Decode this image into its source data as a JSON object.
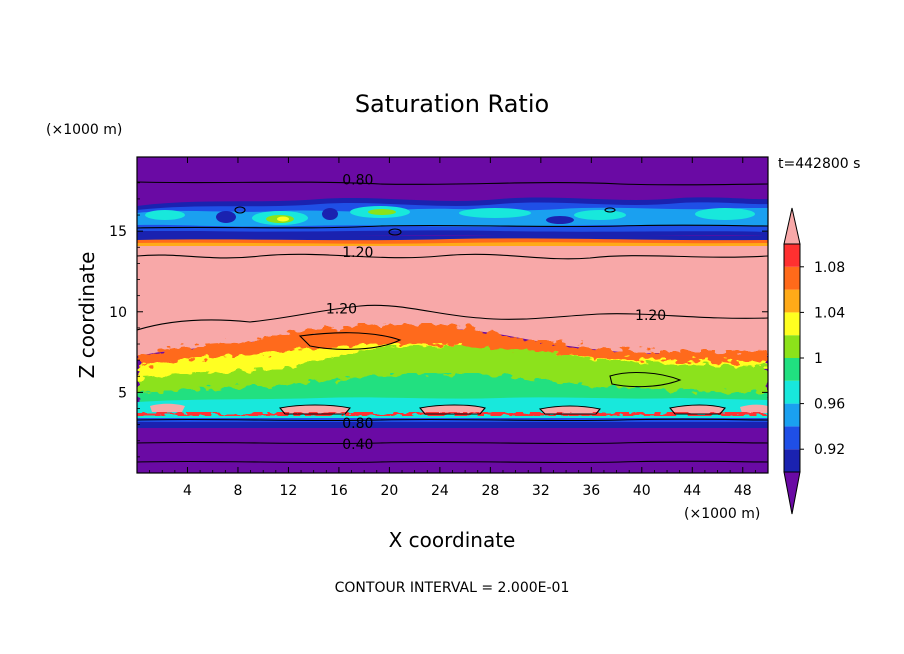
{
  "chart_data": {
    "type": "contour",
    "title": "Saturation Ratio",
    "xlabel": "X coordinate",
    "ylabel": "Z coordinate",
    "x_unit": "(×1000 m)",
    "y_unit": "(×1000 m)",
    "time_label": "t=442800 s",
    "contour_interval_text": "CONTOUR INTERVAL = 2.000E-01",
    "x_ticks": [
      4,
      8,
      12,
      16,
      20,
      24,
      28,
      32,
      36,
      40,
      44,
      48
    ],
    "y_ticks": [
      5,
      10,
      15
    ],
    "xlim": [
      0,
      50
    ],
    "ylim": [
      0,
      19.6
    ],
    "colorbar": {
      "levels": [
        0.9,
        0.92,
        0.94,
        0.96,
        0.98,
        1.0,
        1.02,
        1.04,
        1.06,
        1.08,
        1.1
      ],
      "tick_labels": [
        "0.92",
        "0.96",
        "1",
        "1.04",
        "1.08"
      ],
      "colors": [
        "#6a0aa4",
        "#1a22b0",
        "#1f4fe6",
        "#1aa0f0",
        "#18e8dc",
        "#20e080",
        "#8ce21a",
        "#ffff20",
        "#ffaa18",
        "#ff6a1a",
        "#ff3030",
        "#f8a8a8"
      ]
    },
    "contour_labels": [
      {
        "text": "0.80",
        "x": 17.5,
        "z": 18.2
      },
      {
        "text": "1.20",
        "x": 17.5,
        "z": 13.7
      },
      {
        "text": "1.20",
        "x": 16.2,
        "z": 10.2
      },
      {
        "text": "1.20",
        "x": 40.7,
        "z": 9.8
      },
      {
        "text": "0.80",
        "x": 17.5,
        "z": 3.1
      },
      {
        "text": "0.40",
        "x": 17.5,
        "z": 1.8
      }
    ]
  }
}
